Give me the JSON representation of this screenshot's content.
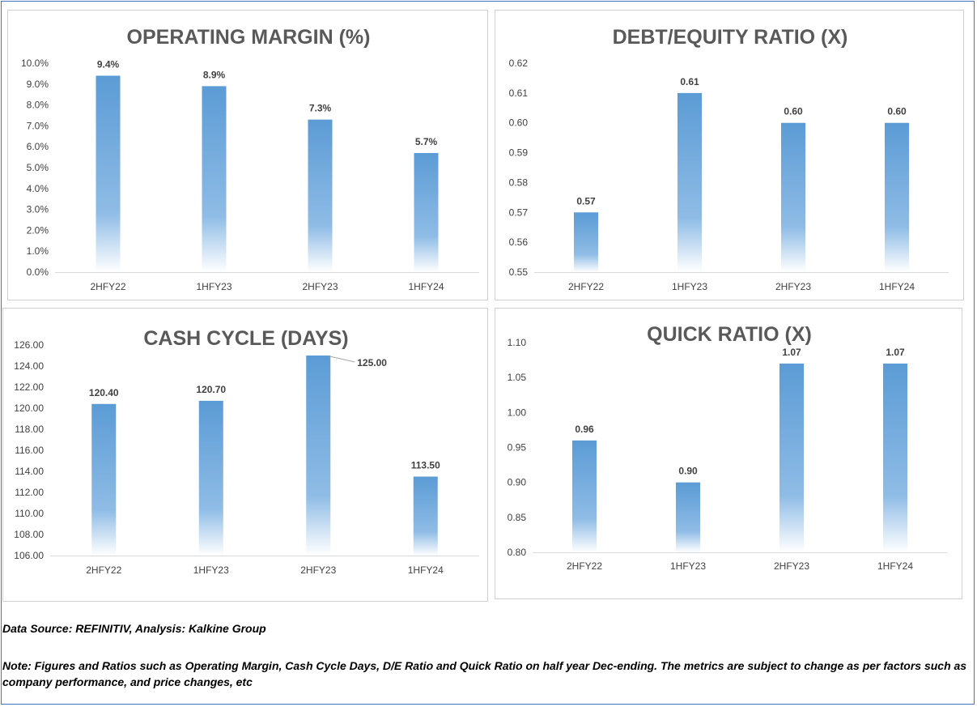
{
  "source_note": "Data Source: REFINITIV, Analysis: Kalkine Group",
  "footnote": "Note: Figures and Ratios such as Operating Margin, Cash Cycle Days, D/E Ratio and Quick Ratio on half year Dec-ending. The metrics are subject to change as per factors such as company performance, and price changes, etc",
  "colors": {
    "bar_top": "#5b9bd5",
    "bar_bottom": "#ffffff",
    "gridline": "#d9d9d9",
    "text": "#404040",
    "title": "#595959"
  },
  "chart_data": [
    {
      "id": "operating-margin",
      "type": "bar",
      "title": "OPERATING MARGIN (%)",
      "categories": [
        "2HFY22",
        "1HFY23",
        "2HFY23",
        "1HFY24"
      ],
      "values": [
        9.4,
        8.9,
        7.3,
        5.7
      ],
      "value_labels": [
        "9.4%",
        "8.9%",
        "7.3%",
        "5.7%"
      ],
      "ylim": [
        0,
        10
      ],
      "ticks": [
        "0.0%",
        "1.0%",
        "2.0%",
        "3.0%",
        "4.0%",
        "5.0%",
        "6.0%",
        "7.0%",
        "8.0%",
        "9.0%",
        "10.0%"
      ],
      "grid": false,
      "legend": "none"
    },
    {
      "id": "debt-equity",
      "type": "bar",
      "title": "DEBT/EQUITY RATIO (X)",
      "categories": [
        "2HFY22",
        "1HFY23",
        "2HFY23",
        "1HFY24"
      ],
      "values": [
        0.57,
        0.61,
        0.6,
        0.6
      ],
      "value_labels": [
        "0.57",
        "0.61",
        "0.60",
        "0.60"
      ],
      "ylim": [
        0.55,
        0.62
      ],
      "ticks": [
        "0.55",
        "0.56",
        "0.57",
        "0.58",
        "0.59",
        "0.60",
        "0.61",
        "0.62"
      ],
      "grid": false,
      "legend": "none"
    },
    {
      "id": "cash-cycle",
      "type": "bar",
      "title": "CASH CYCLE (DAYS)",
      "categories": [
        "2HFY22",
        "1HFY23",
        "2HFY23",
        "1HFY24"
      ],
      "values": [
        120.4,
        120.7,
        125.0,
        113.5
      ],
      "value_labels": [
        "120.40",
        "120.70",
        "125.00",
        "113.50"
      ],
      "ylim": [
        106,
        126
      ],
      "ticks": [
        "106.00",
        "108.00",
        "110.00",
        "112.00",
        "114.00",
        "116.00",
        "118.00",
        "120.00",
        "122.00",
        "124.00",
        "126.00"
      ],
      "grid": false,
      "legend": "none"
    },
    {
      "id": "quick-ratio",
      "type": "bar",
      "title": "QUICK RATIO (X)",
      "categories": [
        "2HFY22",
        "1HFY23",
        "2HFY23",
        "1HFY24"
      ],
      "values": [
        0.96,
        0.9,
        1.07,
        1.07
      ],
      "value_labels": [
        "0.96",
        "0.90",
        "1.07",
        "1.07"
      ],
      "ylim": [
        0.8,
        1.1
      ],
      "ticks": [
        "0.80",
        "0.85",
        "0.90",
        "0.95",
        "1.00",
        "1.05",
        "1.10"
      ],
      "grid": false,
      "legend": "none"
    }
  ]
}
